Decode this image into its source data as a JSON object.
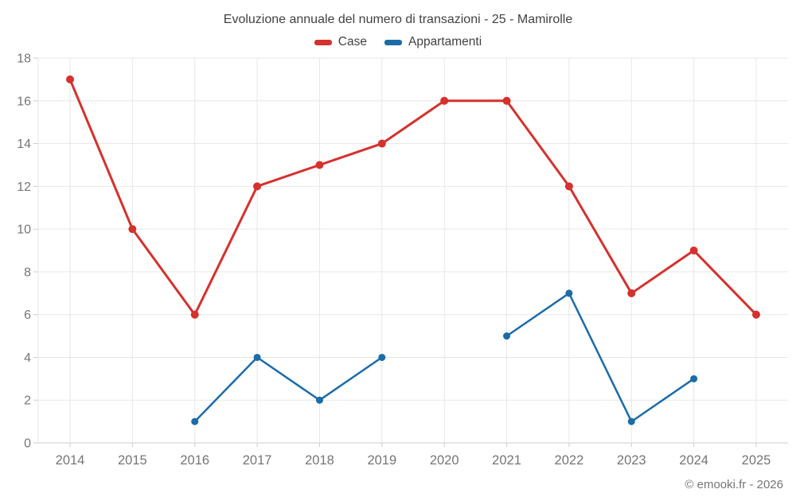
{
  "chart": {
    "title": "Evoluzione annuale del numero di transazioni - 25 - Mamirolle",
    "copyright": "© emooki.fr - 2026"
  },
  "chart_data": {
    "type": "line",
    "title": "Evoluzione annuale del numero di transazioni - 25 - Mamirolle",
    "x": [
      2014,
      2015,
      2016,
      2017,
      2018,
      2019,
      2020,
      2021,
      2022,
      2023,
      2024,
      2025
    ],
    "series": [
      {
        "name": "Case",
        "color": "#d5312d",
        "values": [
          17,
          10,
          6,
          12,
          13,
          14,
          16,
          16,
          12,
          7,
          9,
          6
        ]
      },
      {
        "name": "Appartamenti",
        "color": "#1b6ca8",
        "values": [
          null,
          null,
          1,
          4,
          2,
          4,
          null,
          5,
          7,
          1,
          3,
          null
        ]
      }
    ],
    "xlabel": "",
    "ylabel": "",
    "ylim": [
      0,
      18
    ],
    "ytick_step": 2,
    "grid": true,
    "legend_position": "top",
    "theme": {
      "grid_color": "#e7e7e7",
      "axis_color": "#cccccc",
      "tick_label_color": "#757575",
      "title_color": "#424242"
    }
  }
}
